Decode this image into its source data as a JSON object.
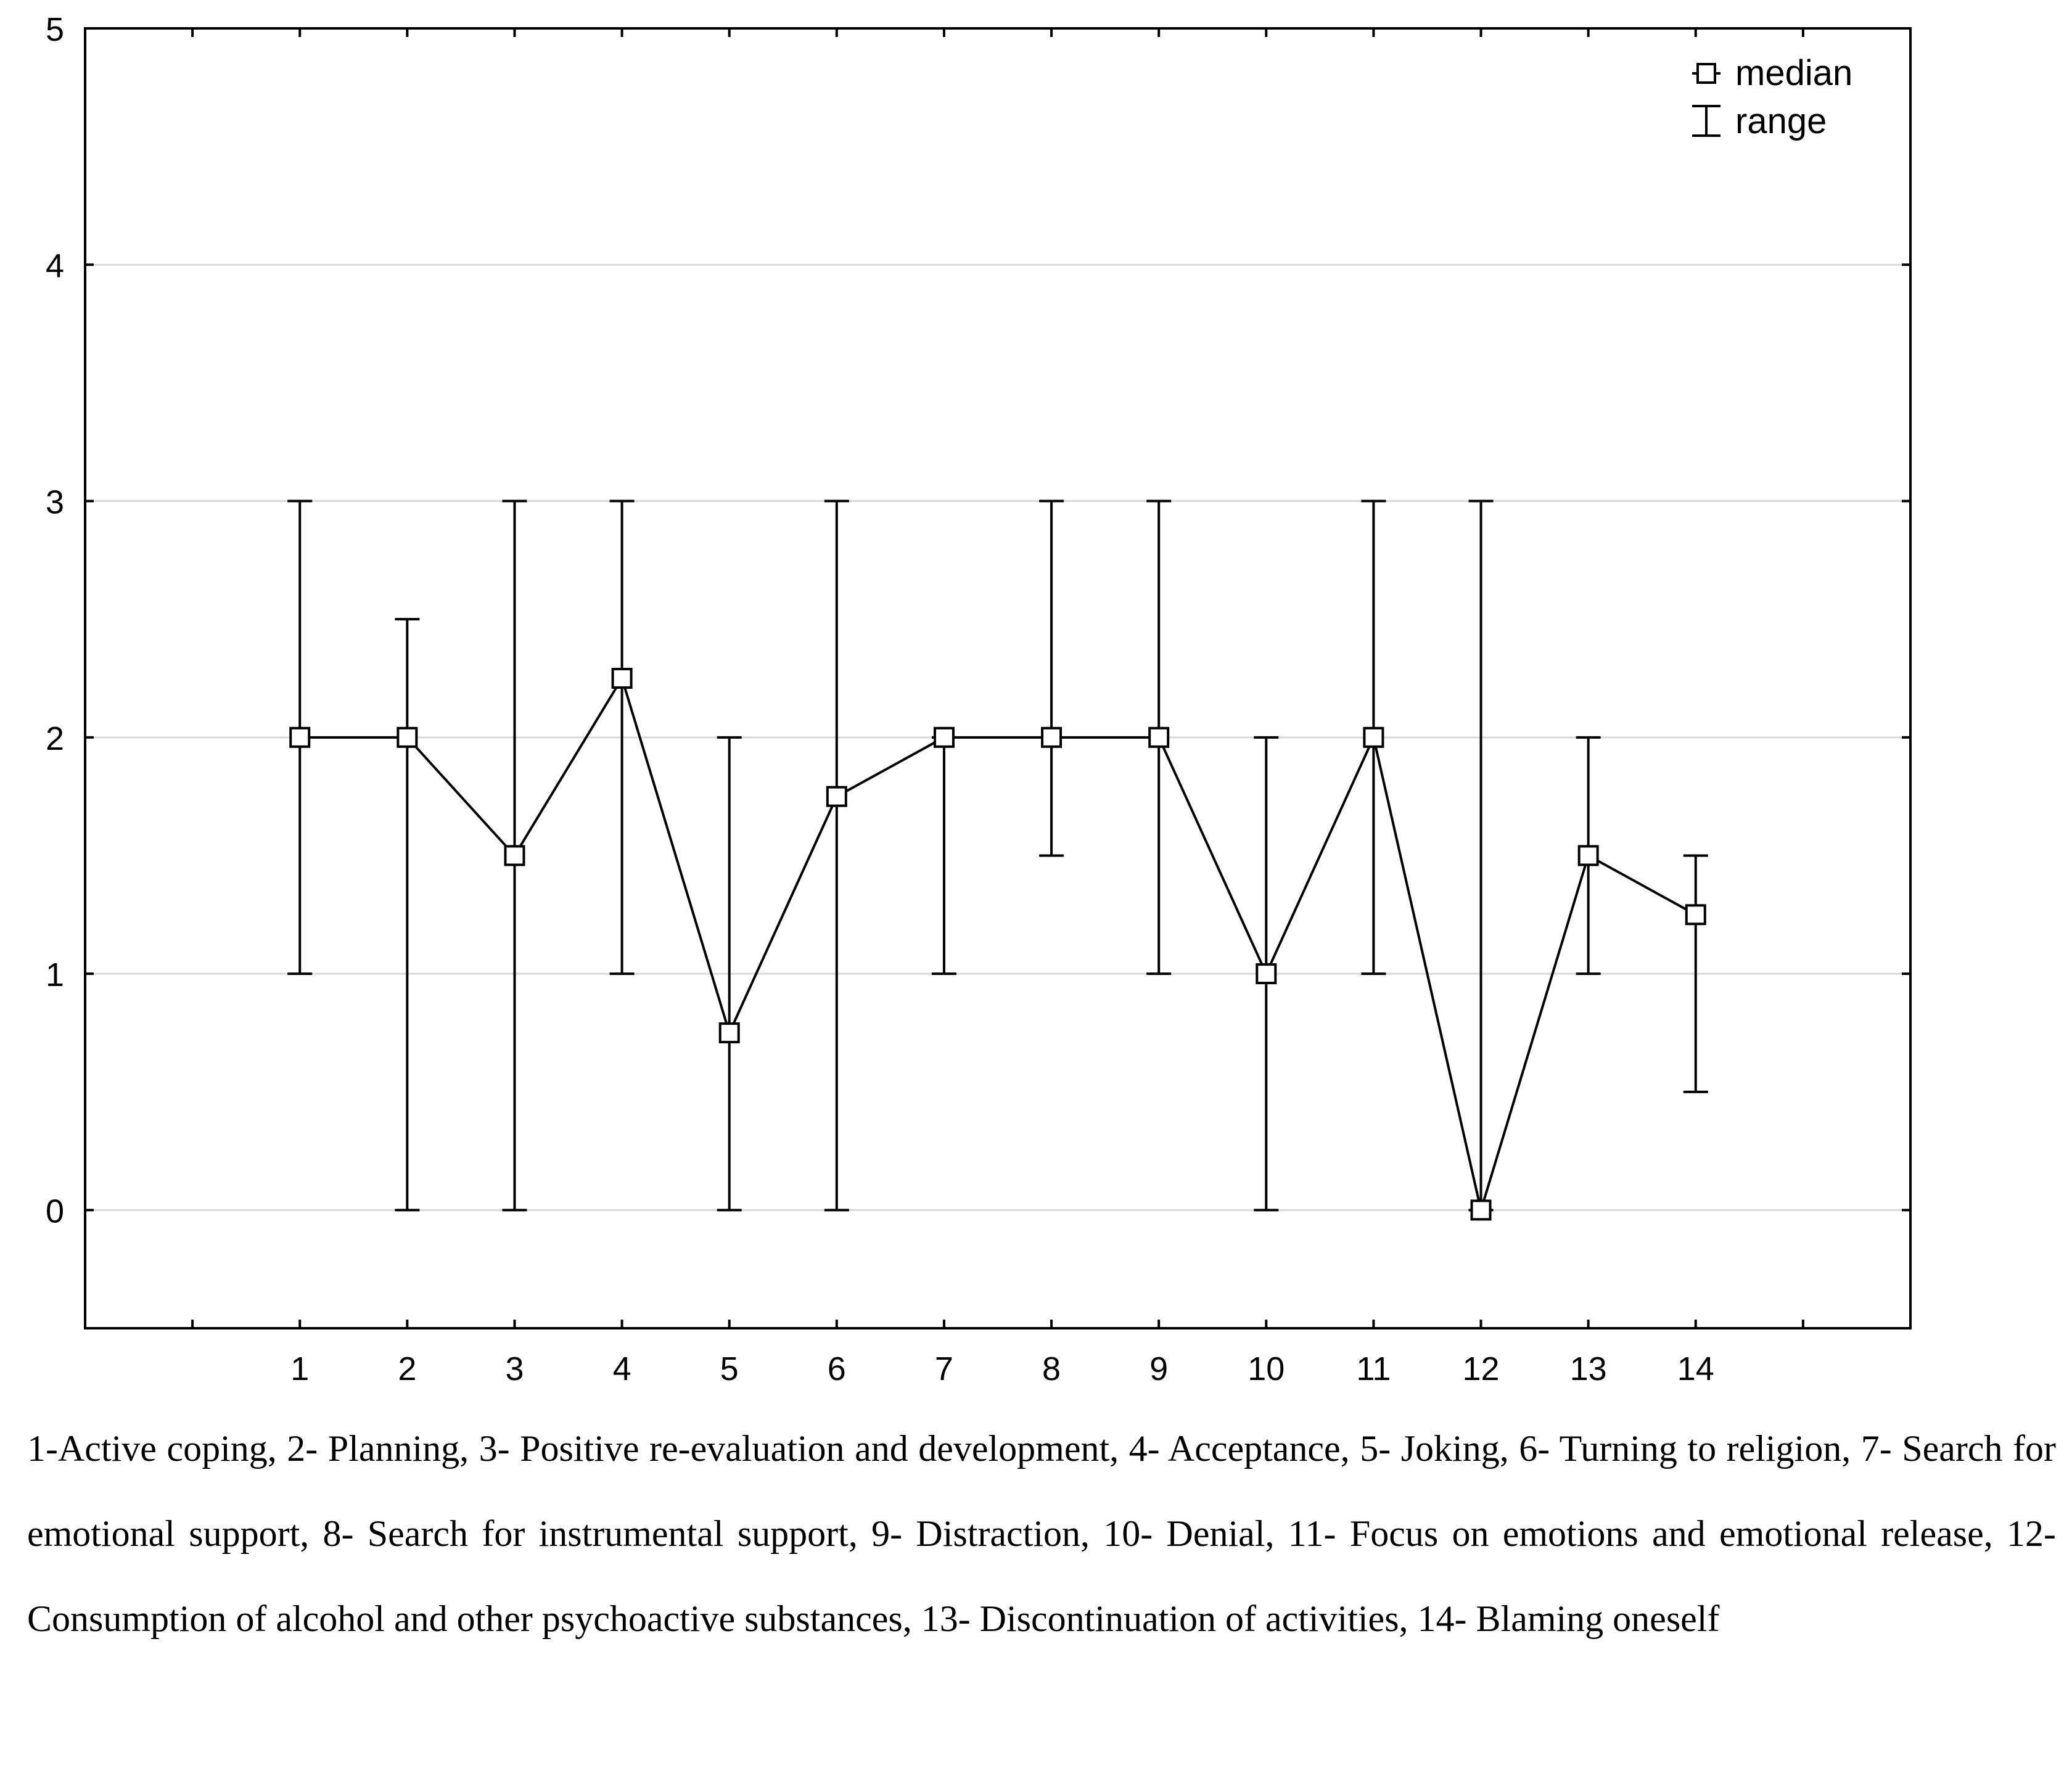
{
  "chart_data": {
    "type": "line",
    "x": [
      1,
      2,
      3,
      4,
      5,
      6,
      7,
      8,
      9,
      10,
      11,
      12,
      13,
      14
    ],
    "x_tick_labels": [
      "1",
      "2",
      "3",
      "4",
      "5",
      "6",
      "7",
      "8",
      "9",
      "10",
      "11",
      "12",
      "13",
      "14"
    ],
    "xlim": [
      -1,
      16
    ],
    "ylim": [
      -0.5,
      5
    ],
    "y_ticks": [
      0,
      1,
      2,
      3,
      4,
      5
    ],
    "y_tick_labels": [
      "0",
      "1",
      "2",
      "3",
      "4",
      "5"
    ],
    "grid": "horizontal",
    "legend_position": "top-right",
    "series": [
      {
        "name": "median",
        "values": [
          2,
          2,
          1.5,
          2.25,
          0.75,
          1.75,
          2,
          2,
          2,
          1,
          2,
          0,
          1.5,
          1.25
        ]
      }
    ],
    "range": {
      "name": "range",
      "low": [
        1,
        0,
        0,
        1,
        0,
        0,
        1,
        1.5,
        1,
        0,
        1,
        0,
        1,
        0.5
      ],
      "high": [
        3,
        2.5,
        3,
        3,
        2,
        3,
        2,
        3,
        3,
        2,
        3,
        3,
        2,
        1.5
      ]
    }
  },
  "caption": {
    "text": "1-Active coping, 2- Planning, 3- Positive re-evaluation and development, 4- Acceptance, 5- Joking, 6- Turning to religion, 7- Search for emotional support, 8- Search for instrumental support, 9- Distraction, 10- Denial, 11- Focus on emotions and emotional release, 12- Consumption of alcohol and other psychoactive substances, 13- Discontinuation of activities, 14- Blaming oneself"
  }
}
